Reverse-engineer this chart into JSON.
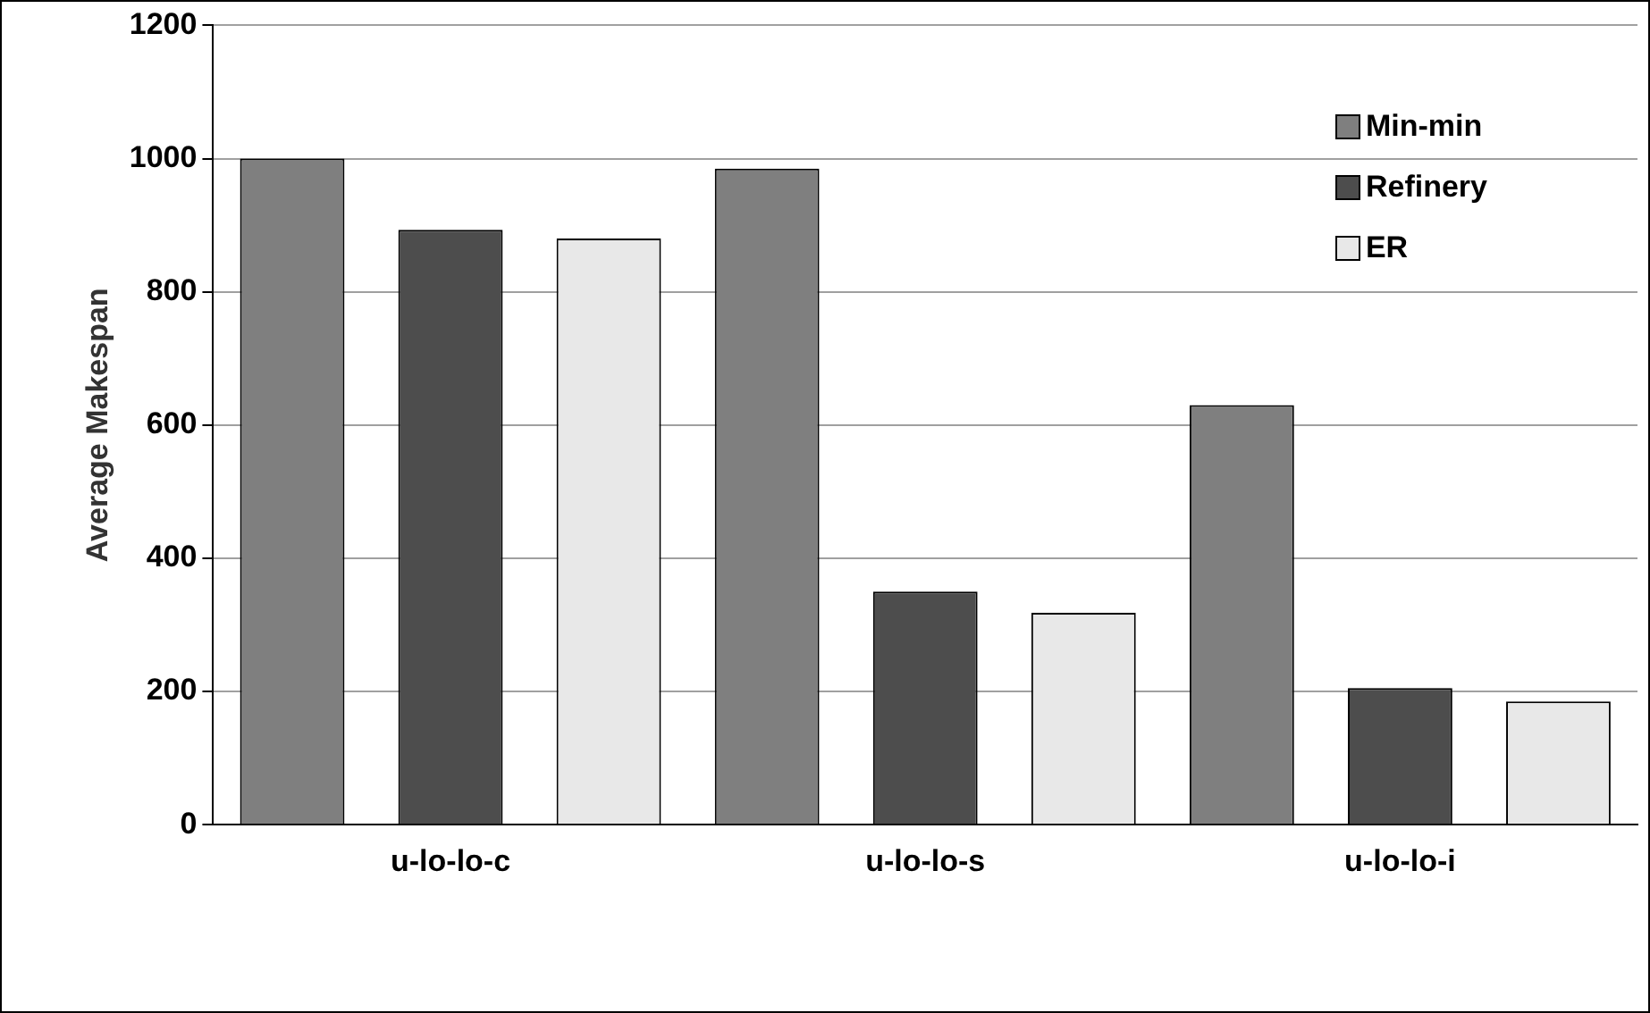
{
  "chart_data": {
    "type": "bar",
    "ylabel": "Average Makespan",
    "categories": [
      "u-lo-lo-c",
      "u-lo-lo-s",
      "u-lo-lo-i"
    ],
    "series": [
      {
        "name": "Min-min",
        "color": "#7f7f7f",
        "values": [
          1000,
          985,
          630
        ]
      },
      {
        "name": "Refinery",
        "color": "#4d4d4d",
        "values": [
          893,
          350,
          205
        ]
      },
      {
        "name": "ER",
        "color": "#e8e8e8",
        "values": [
          880,
          318,
          185
        ]
      }
    ],
    "ylim": [
      0,
      1200
    ],
    "yticks": [
      0,
      200,
      400,
      600,
      800,
      1000,
      1200
    ],
    "grid": "y",
    "legend": "top right"
  }
}
